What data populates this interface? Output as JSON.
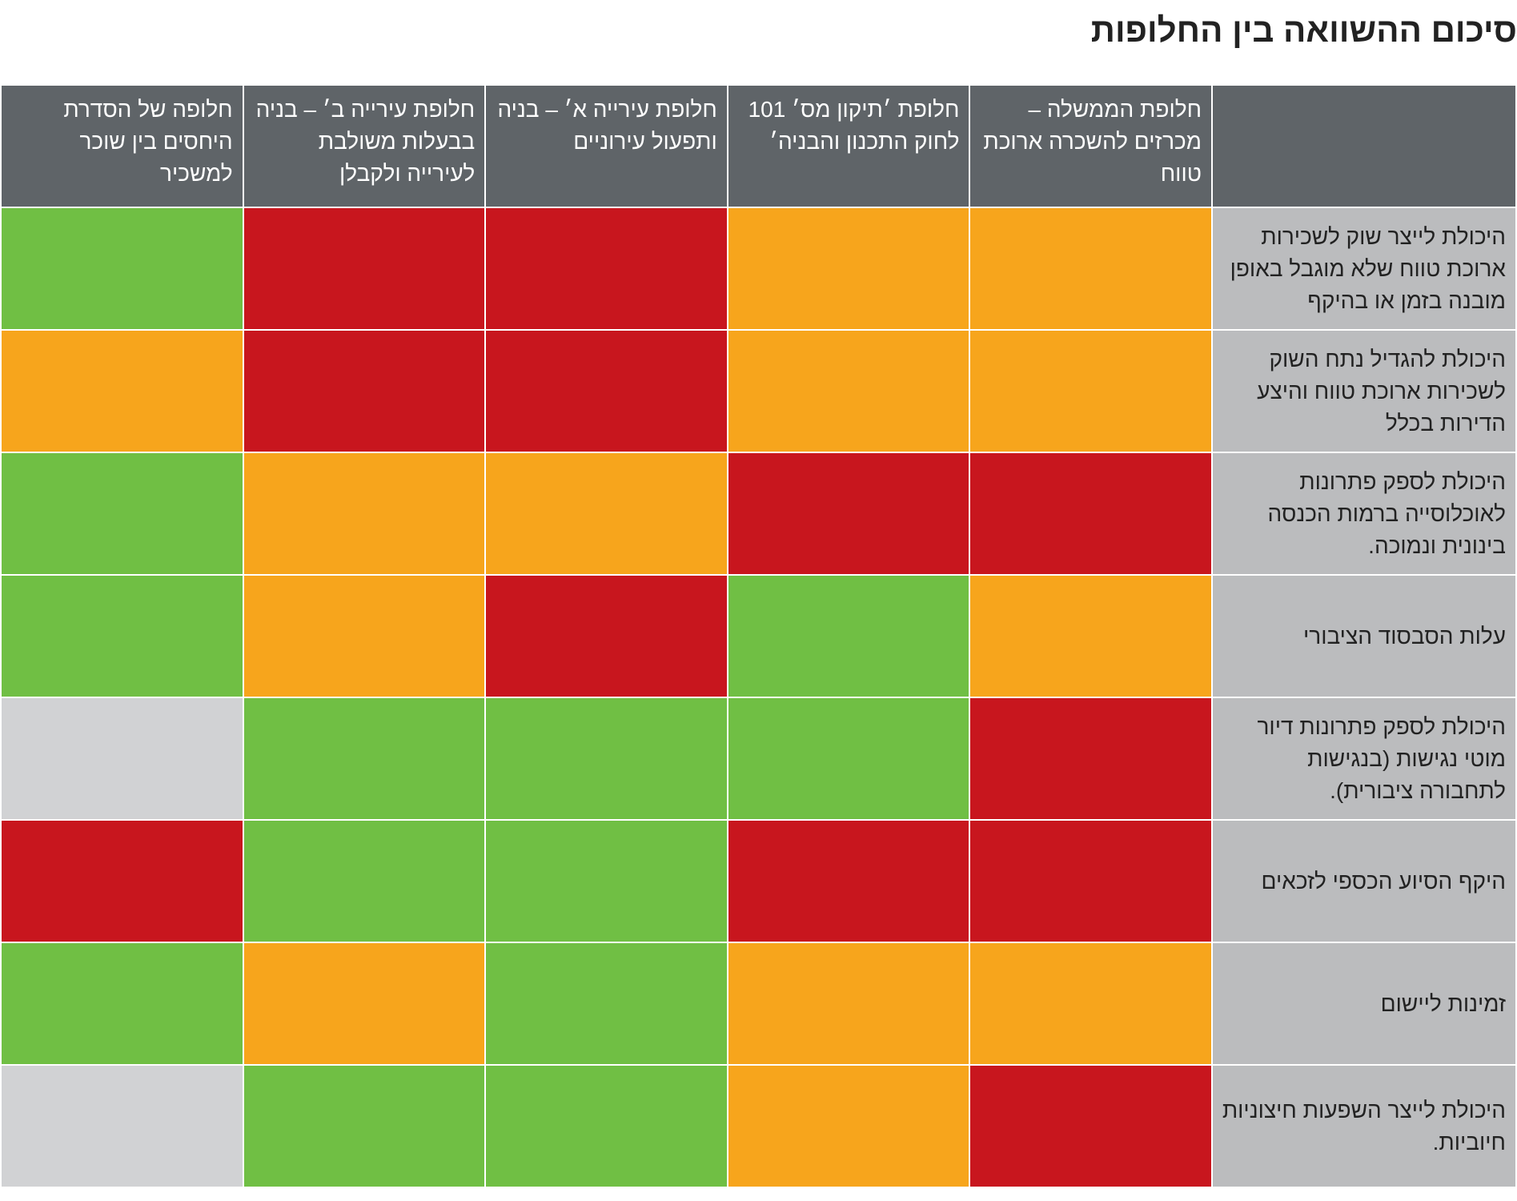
{
  "title": "סיכום ההשוואה בין החלופות",
  "table": {
    "columns": [
      "חלופת הממשלה – מכרזים להשכרה ארוכת טווח",
      "חלופת ׳תיקון מס׳ 101 לחוק התכנון והבניה׳",
      "חלופת עירייה א׳ – בניה ותפעול עירוניים",
      "חלופת עירייה ב׳ – בניה בבעלות משולבת לעירייה ולקבלן",
      "חלופה של הסדרת היחסים בין שוכר למשכיר"
    ],
    "rows": [
      {
        "label": "היכולת לייצר שוק לשכירות ארוכת טווח שלא מוגבל באופן מובנה בזמן או בהיקף",
        "colors": [
          "#f7a51c",
          "#f7a51c",
          "#c8161e",
          "#c8161e",
          "#70bf44"
        ]
      },
      {
        "label": "היכולת להגדיל נתח השוק לשכירות ארוכת טווח והיצע הדירות בכלל",
        "colors": [
          "#f7a51c",
          "#f7a51c",
          "#c8161e",
          "#c8161e",
          "#f7a51c"
        ]
      },
      {
        "label": "היכולת לספק פתרונות לאוכלוסייה ברמות הכנסה בינונית ונמוכה.",
        "colors": [
          "#c8161e",
          "#c8161e",
          "#f7a51c",
          "#f7a51c",
          "#70bf44"
        ]
      },
      {
        "label": "עלות הסבסוד הציבורי",
        "colors": [
          "#f7a51c",
          "#70bf44",
          "#c8161e",
          "#f7a51c",
          "#70bf44"
        ]
      },
      {
        "label": "היכולת לספק פתרונות דיור מוטי נגישות (בנגישות לתחבורה ציבורית).",
        "colors": [
          "#c8161e",
          "#70bf44",
          "#70bf44",
          "#70bf44",
          "#d1d2d4"
        ]
      },
      {
        "label": "היקף הסיוע הכספי לזכאים",
        "colors": [
          "#c8161e",
          "#c8161e",
          "#70bf44",
          "#70bf44",
          "#c8161e"
        ]
      },
      {
        "label": "זמינות ליישום",
        "colors": [
          "#f7a51c",
          "#f7a51c",
          "#70bf44",
          "#f7a51c",
          "#70bf44"
        ]
      },
      {
        "label": "היכולת לייצר השפעות חיצוניות חיוביות.",
        "colors": [
          "#c8161e",
          "#f7a51c",
          "#70bf44",
          "#70bf44",
          "#d1d2d4"
        ]
      }
    ]
  }
}
